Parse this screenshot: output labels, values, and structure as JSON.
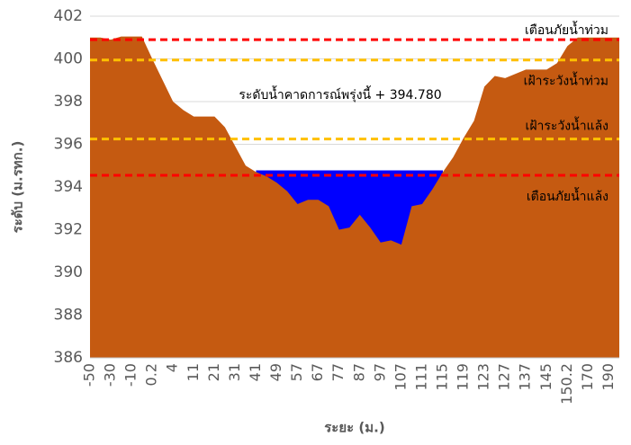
{
  "chart_data": {
    "type": "area",
    "x_label": "ระยะ (ม.)",
    "y_label": "ระดับ (ม.รทก.)",
    "annotation": "ระดับน้ำคาดการณ์พรุ่งนี้ + 394.780",
    "categories": [
      "-50",
      null,
      "-30",
      null,
      "-10",
      null,
      "0.2",
      null,
      "4",
      null,
      "11",
      null,
      "21",
      null,
      "31",
      null,
      "41",
      null,
      "49",
      null,
      "57",
      null,
      "67",
      null,
      "77",
      null,
      "87",
      null,
      "97",
      null,
      "107",
      null,
      "111",
      null,
      "115",
      null,
      "119",
      null,
      "123",
      null,
      "127",
      null,
      "137",
      null,
      "145",
      null,
      "150.2",
      null,
      "170",
      null,
      "190",
      null
    ],
    "series": [
      {
        "color": "#0000ff",
        "values": [
          null,
          null,
          null,
          null,
          null,
          null,
          null,
          null,
          null,
          null,
          null,
          null,
          null,
          null,
          null,
          null,
          394.78,
          394.78,
          394.78,
          394.78,
          394.78,
          394.78,
          394.78,
          394.78,
          394.78,
          394.78,
          394.78,
          394.78,
          394.78,
          394.78,
          394.78,
          394.78,
          394.78,
          394.78,
          394.78,
          null,
          null,
          null,
          null,
          null,
          null,
          null,
          null,
          null,
          null,
          null,
          null,
          null,
          null,
          null,
          null,
          null
        ]
      },
      {
        "color": "#c55a11",
        "values": [
          401,
          401,
          400.9,
          401.05,
          401.05,
          401.05,
          400,
          399,
          398,
          397.6,
          397.3,
          397.3,
          397.3,
          396.8,
          395.9,
          395,
          394.7,
          394.5,
          394.2,
          393.8,
          393.2,
          393.4,
          393.4,
          393.1,
          392,
          392.1,
          392.7,
          392.1,
          391.4,
          391.5,
          391.3,
          393.1,
          393.2,
          393.9,
          394.7,
          395.4,
          396.3,
          397.1,
          398.7,
          399.2,
          399.1,
          399.3,
          399.5,
          399.5,
          399.5,
          399.8,
          400.6,
          401,
          401,
          401,
          401,
          401
        ]
      }
    ],
    "reference_lines": [
      {
        "label": "เตือนภัยน้ำท่วม",
        "value": 400.9,
        "color": "#ff0000"
      },
      {
        "label": "เฝ้าระวังน้ำท่วม",
        "value": 399.95,
        "color": "#ffc000"
      },
      {
        "label": "เฝ้าระวังน้ำแล้ง",
        "value": 396.25,
        "color": "#ffc000"
      },
      {
        "label": "เตือนภัยน้ำแล้ง",
        "value": 394.55,
        "color": "#ff0000"
      }
    ],
    "ylim": [
      386,
      402
    ],
    "yticks": [
      386,
      388,
      390,
      392,
      394,
      396,
      398,
      400,
      402
    ],
    "grid": true
  }
}
